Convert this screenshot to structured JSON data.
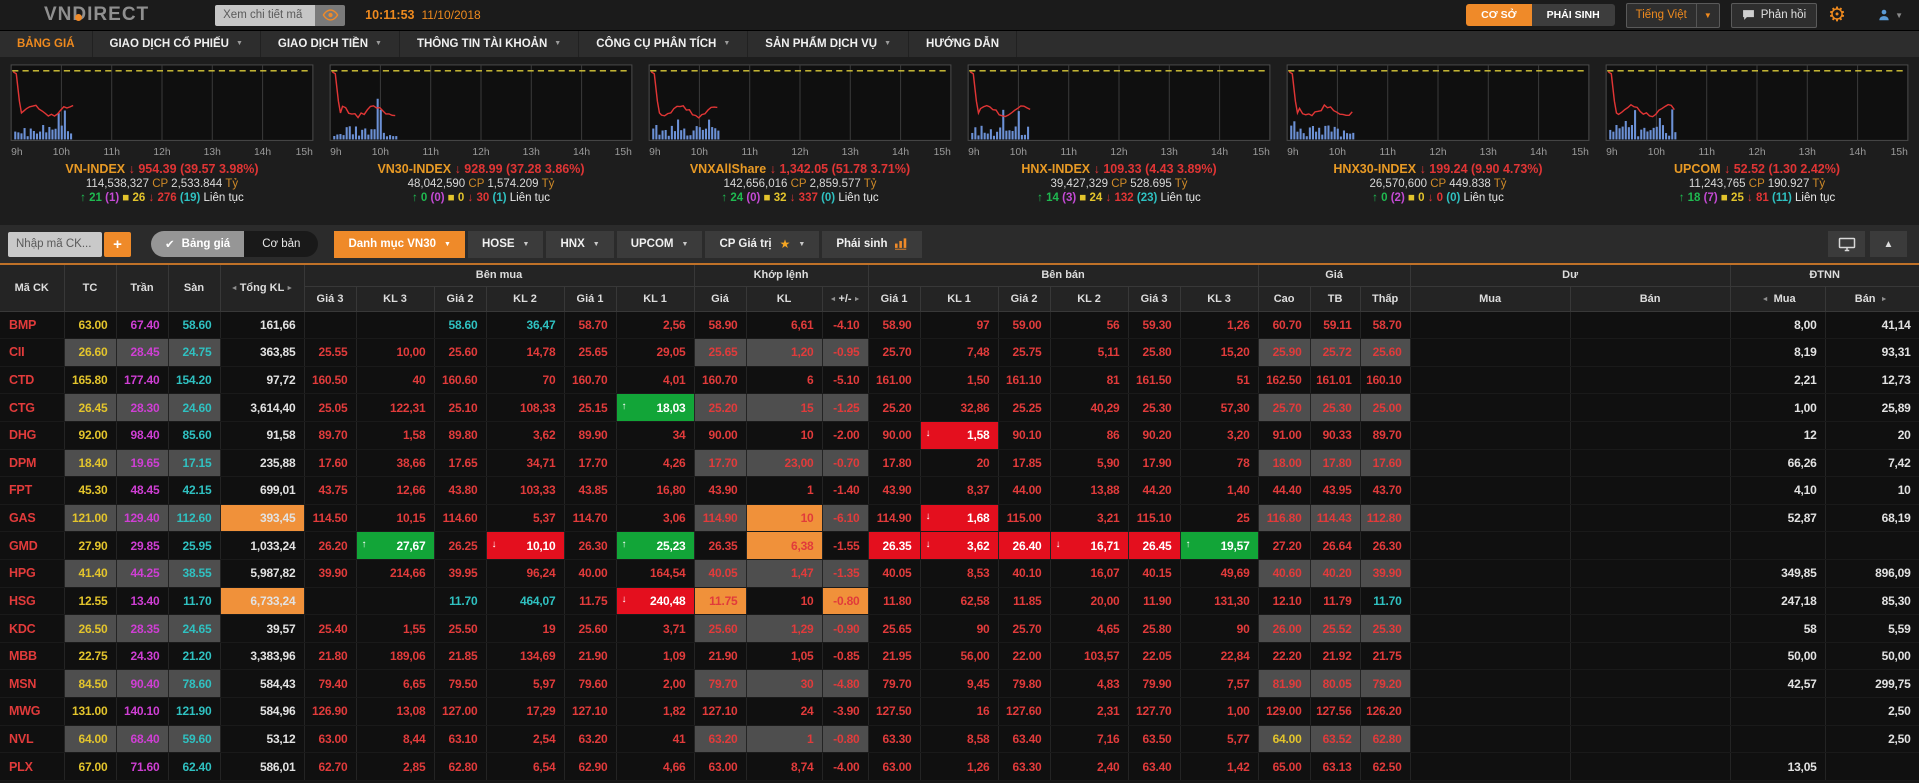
{
  "header": {
    "logo": "VNDIRECT",
    "search_placeholder": "Xem chi tiết mã",
    "time": "10:11:53",
    "date": "11/10/2018",
    "market_tabs": [
      {
        "label": "CƠ SỞ",
        "active": true
      },
      {
        "label": "PHÁI SINH",
        "active": false
      }
    ],
    "language": "Tiếng Việt",
    "feedback": "Phản hồi"
  },
  "nav": {
    "items": [
      {
        "id": "bang-gia",
        "label": "BẢNG GIÁ",
        "active": true,
        "dd": false
      },
      {
        "id": "giao-dich-co-phieu",
        "label": "GIAO DỊCH CỔ PHIẾU",
        "dd": true
      },
      {
        "id": "giao-dich-tien",
        "label": "GIAO DỊCH TIỀN",
        "dd": true
      },
      {
        "id": "thong-tin-tai-khoan",
        "label": "THÔNG TIN TÀI KHOẢN",
        "dd": true
      },
      {
        "id": "cong-cu-phan-tich",
        "label": "CÔNG CỤ PHÂN TÍCH",
        "dd": true
      },
      {
        "id": "san-pham-dich-vu",
        "label": "SẢN PHẨM DỊCH VỤ",
        "dd": true
      },
      {
        "id": "huong-dan",
        "label": "HƯỚNG DẪN",
        "dd": false
      }
    ]
  },
  "units": {
    "shares": "CP",
    "money": "Tỷ"
  },
  "indices": [
    {
      "id": "vn-index",
      "name": "VN-INDEX",
      "value": "954.39",
      "change": "(39.57 3.98%)",
      "shares": "114,538,327",
      "money": "2,533.844",
      "up": "21",
      "ceiling": "(1)",
      "reference": "26",
      "down": "276",
      "floor": "(19)",
      "status": "Liên tục",
      "axis": [
        "9h",
        "10h",
        "11h",
        "12h",
        "13h",
        "14h",
        "15h"
      ]
    },
    {
      "id": "vn30-index",
      "name": "VN30-INDEX",
      "value": "928.99",
      "change": "(37.28 3.86%)",
      "shares": "48,042,590",
      "money": "1,574.209",
      "up": "0",
      "ceiling": "(0)",
      "reference": "0",
      "down": "30",
      "floor": "(1)",
      "status": "Liên tục",
      "axis": [
        "9h",
        "10h",
        "11h",
        "12h",
        "13h",
        "14h",
        "15h"
      ]
    },
    {
      "id": "vnxallshare",
      "name": "VNXAllShare",
      "value": "1,342.05",
      "change": "(51.78 3.71%)",
      "shares": "142,656,016",
      "money": "2,859.577",
      "up": "24",
      "ceiling": "(0)",
      "reference": "32",
      "down": "337",
      "floor": "(0)",
      "status": "Liên tục",
      "axis": [
        "9h",
        "10h",
        "11h",
        "12h",
        "13h",
        "14h",
        "15h"
      ]
    },
    {
      "id": "hnx-index",
      "name": "HNX-INDEX",
      "value": "109.33",
      "change": "(4.43 3.89%)",
      "shares": "39,427,329",
      "money": "528.695",
      "up": "14",
      "ceiling": "(3)",
      "reference": "24",
      "down": "132",
      "floor": "(23)",
      "status": "Liên tục",
      "axis": [
        "9h",
        "10h",
        "11h",
        "12h",
        "13h",
        "14h",
        "15h"
      ]
    },
    {
      "id": "hnx30-index",
      "name": "HNX30-INDEX",
      "value": "199.24",
      "change": "(9.90 4.73%)",
      "shares": "26,570,600",
      "money": "449.838",
      "up": "0",
      "ceiling": "(2)",
      "reference": "0",
      "down": "0",
      "floor": "(0)",
      "status": "Liên tục",
      "axis": [
        "9h",
        "10h",
        "11h",
        "12h",
        "13h",
        "14h",
        "15h"
      ]
    },
    {
      "id": "upcom",
      "name": "UPCOM",
      "value": "52.52",
      "change": "(1.30 2.42%)",
      "shares": "11,243,765",
      "money": "190.927",
      "up": "18",
      "ceiling": "(7)",
      "reference": "25",
      "down": "81",
      "floor": "(11)",
      "status": "Liên tục",
      "axis": [
        "9h",
        "10h",
        "11h",
        "12h",
        "13h",
        "14h",
        "15h"
      ]
    }
  ],
  "toolbar": {
    "symbol_placeholder": "Nhập mã CK...",
    "add_label": "+",
    "toggle": [
      {
        "label": "Bảng giá",
        "checked": true
      },
      {
        "label": "Cơ bản",
        "checked": false
      }
    ],
    "tabs": [
      {
        "id": "danh-muc-vn30",
        "label": "Danh mục VN30",
        "active": true,
        "dd": true
      },
      {
        "id": "hose",
        "label": "HOSE",
        "dd": true
      },
      {
        "id": "hnx",
        "label": "HNX",
        "dd": true
      },
      {
        "id": "upcom",
        "label": "UPCOM",
        "dd": true
      },
      {
        "id": "cp-gia-tri",
        "label": "CP Giá trị",
        "star": true,
        "dd": true
      },
      {
        "id": "phai-sinh",
        "label": "Phái sinh",
        "chart_icon": true
      }
    ]
  },
  "table": {
    "fixed_headers": [
      "Mã CK",
      "TC",
      "Trần",
      "Sàn",
      "Tổng KL"
    ],
    "groups": [
      {
        "label": "Bên mua",
        "span": 6
      },
      {
        "label": "Khớp lệnh",
        "span": 3
      },
      {
        "label": "Bên bán",
        "span": 6
      },
      {
        "label": "Giá",
        "span": 3
      },
      {
        "label": "Dư",
        "span": 2
      },
      {
        "label": "ĐTNN",
        "span": 2
      }
    ],
    "sub_headers": [
      "Giá 3",
      "KL 3",
      "Giá 2",
      "KL 2",
      "Giá 1",
      "KL 1",
      "Giá",
      "KL",
      "+/-",
      "Giá 1",
      "KL 1",
      "Giá 2",
      "KL 2",
      "Giá 3",
      "KL 3",
      "Cao",
      "TB",
      "Thấp",
      "Mua",
      "Bán",
      "Mua",
      "Bán"
    ],
    "rows": [
      {
        "cells": [
          "BMP",
          "63.00",
          "67.40",
          "58.60",
          "161,66",
          "",
          "",
          "58.60",
          "36,47",
          "58.70",
          "2,56",
          "58.90",
          "6,61",
          "-4.10",
          "58.90",
          "97",
          "59.00",
          "56",
          "59.30",
          "1,26",
          "60.70",
          "59.11",
          "58.70",
          "",
          "",
          "8,00",
          "41,14"
        ],
        "sp": {
          "7": {
            "c": "c"
          },
          "8": {
            "c": "c"
          }
        }
      },
      {
        "cells": [
          "CII",
          "26.60",
          "28.45",
          "24.75",
          "363,85",
          "25.55",
          "10,00",
          "25.60",
          "14,78",
          "25.65",
          "29,05",
          "25.65",
          "1,20",
          "-0.95",
          "25.70",
          "7,48",
          "25.75",
          "5,11",
          "25.80",
          "15,20",
          "25.90",
          "25.72",
          "25.60",
          "",
          "",
          "8,19",
          "93,31"
        ]
      },
      {
        "cells": [
          "CTD",
          "165.80",
          "177.40",
          "154.20",
          "97,72",
          "160.50",
          "40",
          "160.60",
          "70",
          "160.70",
          "4,01",
          "160.70",
          "6",
          "-5.10",
          "161.00",
          "1,50",
          "161.10",
          "81",
          "161.50",
          "51",
          "162.50",
          "161.01",
          "160.10",
          "",
          "",
          "2,21",
          "12,73"
        ]
      },
      {
        "cells": [
          "CTG",
          "26.45",
          "28.30",
          "24.60",
          "3,614,40",
          "25.05",
          "122,31",
          "25.10",
          "108,33",
          "25.15",
          "18,03",
          "25.20",
          "15",
          "-1.25",
          "25.20",
          "32,86",
          "25.25",
          "40,29",
          "25.30",
          "57,30",
          "25.70",
          "25.30",
          "25.00",
          "",
          "",
          "1,00",
          "25,89"
        ],
        "sp": {
          "10": {
            "bg": "g",
            "a": "u"
          }
        }
      },
      {
        "cells": [
          "DHG",
          "92.00",
          "98.40",
          "85.60",
          "91,58",
          "89.70",
          "1,58",
          "89.80",
          "3,62",
          "89.90",
          "34",
          "90.00",
          "10",
          "-2.00",
          "90.00",
          "1,58",
          "90.10",
          "86",
          "90.20",
          "3,20",
          "91.00",
          "90.33",
          "89.70",
          "",
          "",
          "12",
          "20"
        ],
        "sp": {
          "15": {
            "bg": "r",
            "a": "d"
          }
        }
      },
      {
        "cells": [
          "DPM",
          "18.40",
          "19.65",
          "17.15",
          "235,88",
          "17.60",
          "38,66",
          "17.65",
          "34,71",
          "17.70",
          "4,26",
          "17.70",
          "23,00",
          "-0.70",
          "17.80",
          "20",
          "17.85",
          "5,90",
          "17.90",
          "78",
          "18.00",
          "17.80",
          "17.60",
          "",
          "",
          "66,26",
          "7,42"
        ]
      },
      {
        "cells": [
          "FPT",
          "45.30",
          "48.45",
          "42.15",
          "699,01",
          "43.75",
          "12,66",
          "43.80",
          "103,33",
          "43.85",
          "16,80",
          "43.90",
          "1",
          "-1.40",
          "43.90",
          "8,37",
          "44.00",
          "13,88",
          "44.20",
          "1,40",
          "44.40",
          "43.95",
          "43.70",
          "",
          "",
          "4,10",
          "10"
        ]
      },
      {
        "cells": [
          "GAS",
          "121.00",
          "129.40",
          "112.60",
          "393,45",
          "114.50",
          "10,15",
          "114.60",
          "5,37",
          "114.70",
          "3,06",
          "114.90",
          "10",
          "-6.10",
          "114.90",
          "1,68",
          "115.00",
          "3,21",
          "115.10",
          "25",
          "116.80",
          "114.43",
          "112.80",
          "",
          "",
          "52,87",
          "68,19"
        ],
        "sp": {
          "4": {
            "bg": "o"
          },
          "12": {
            "bg": "o"
          },
          "15": {
            "bg": "r",
            "a": "d"
          }
        }
      },
      {
        "cells": [
          "GMD",
          "27.90",
          "29.85",
          "25.95",
          "1,033,24",
          "26.20",
          "27,67",
          "26.25",
          "10,10",
          "26.30",
          "25,23",
          "26.35",
          "6,38",
          "-1.55",
          "26.35",
          "3,62",
          "26.40",
          "16,71",
          "26.45",
          "19,57",
          "27.20",
          "26.64",
          "26.30",
          "",
          "",
          "",
          ""
        ],
        "sp": {
          "6": {
            "bg": "g",
            "a": "u"
          },
          "8": {
            "bg": "r",
            "a": "d"
          },
          "10": {
            "bg": "g",
            "a": "u"
          },
          "12": {
            "bg": "o"
          },
          "14": {
            "bg": "r"
          },
          "15": {
            "bg": "r",
            "a": "d"
          },
          "16": {
            "bg": "r"
          },
          "17": {
            "bg": "r",
            "a": "d"
          },
          "18": {
            "bg": "r"
          },
          "19": {
            "bg": "g",
            "a": "u"
          }
        }
      },
      {
        "cells": [
          "HPG",
          "41.40",
          "44.25",
          "38.55",
          "5,987,82",
          "39.90",
          "214,66",
          "39.95",
          "96,24",
          "40.00",
          "164,54",
          "40.05",
          "1,47",
          "-1.35",
          "40.05",
          "8,53",
          "40.10",
          "16,07",
          "40.15",
          "49,69",
          "40.60",
          "40.20",
          "39.90",
          "",
          "",
          "349,85",
          "896,09"
        ]
      },
      {
        "cells": [
          "HSG",
          "12.55",
          "13.40",
          "11.70",
          "6,733,24",
          "",
          "",
          "11.70",
          "464,07",
          "11.75",
          "240,48",
          "11.75",
          "10",
          "-0.80",
          "11.80",
          "62,58",
          "11.85",
          "20,00",
          "11.90",
          "131,30",
          "12.10",
          "11.79",
          "11.70",
          "",
          "",
          "247,18",
          "85,30"
        ],
        "sp": {
          "4": {
            "bg": "o"
          },
          "7": {
            "c": "c"
          },
          "8": {
            "c": "c"
          },
          "10": {
            "bg": "r",
            "a": "d"
          },
          "11": {
            "bg": "o"
          },
          "13": {
            "bg": "o"
          },
          "22": {
            "c": "c"
          }
        }
      },
      {
        "cells": [
          "KDC",
          "26.50",
          "28.35",
          "24.65",
          "39,57",
          "25.40",
          "1,55",
          "25.50",
          "19",
          "25.60",
          "3,71",
          "25.60",
          "1,29",
          "-0.90",
          "25.65",
          "90",
          "25.70",
          "4,65",
          "25.80",
          "90",
          "26.00",
          "25.52",
          "25.30",
          "",
          "",
          "58",
          "5,59"
        ]
      },
      {
        "cells": [
          "MBB",
          "22.75",
          "24.30",
          "21.20",
          "3,383,96",
          "21.80",
          "189,06",
          "21.85",
          "134,69",
          "21.90",
          "1,09",
          "21.90",
          "1,05",
          "-0.85",
          "21.95",
          "56,00",
          "22.00",
          "103,57",
          "22.05",
          "22,84",
          "22.20",
          "21.92",
          "21.75",
          "",
          "",
          "50,00",
          "50,00"
        ]
      },
      {
        "cells": [
          "MSN",
          "84.50",
          "90.40",
          "78.60",
          "584,43",
          "79.40",
          "6,65",
          "79.50",
          "5,97",
          "79.60",
          "2,00",
          "79.70",
          "30",
          "-4.80",
          "79.70",
          "9,45",
          "79.80",
          "4,83",
          "79.90",
          "7,57",
          "81.90",
          "80.05",
          "79.20",
          "",
          "",
          "42,57",
          "299,75"
        ]
      },
      {
        "cells": [
          "MWG",
          "131.00",
          "140.10",
          "121.90",
          "584,96",
          "126.90",
          "13,08",
          "127.00",
          "17,29",
          "127.10",
          "1,82",
          "127.10",
          "24",
          "-3.90",
          "127.50",
          "16",
          "127.60",
          "2,31",
          "127.70",
          "1,00",
          "129.00",
          "127.56",
          "126.20",
          "",
          "",
          "",
          "2,50"
        ]
      },
      {
        "cells": [
          "NVL",
          "64.00",
          "68.40",
          "59.60",
          "53,12",
          "63.00",
          "8,44",
          "63.10",
          "2,54",
          "63.20",
          "41",
          "63.20",
          "1",
          "-0.80",
          "63.30",
          "8,58",
          "63.40",
          "7,16",
          "63.50",
          "5,77",
          "64.00",
          "63.52",
          "62.80",
          "",
          "",
          "",
          "2,50"
        ],
        "sp": {
          "20": {
            "c": "y"
          }
        }
      },
      {
        "cells": [
          "PLX",
          "67.00",
          "71.60",
          "62.40",
          "586,01",
          "62.70",
          "2,85",
          "62.80",
          "6,54",
          "62.90",
          "4,66",
          "63.00",
          "8,74",
          "-4.00",
          "63.00",
          "1,26",
          "63.30",
          "2,40",
          "63.40",
          "1,42",
          "65.00",
          "63.13",
          "62.50",
          "",
          "",
          "13,05",
          ""
        ]
      }
    ]
  }
}
